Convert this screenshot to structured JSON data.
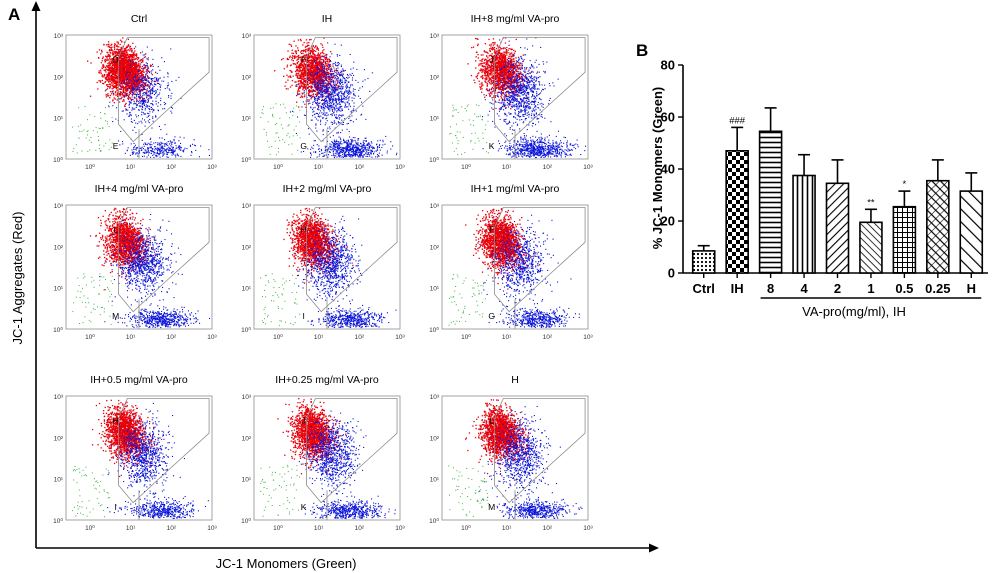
{
  "panel_labels": {
    "a": "A",
    "b": "B"
  },
  "panel_a": {
    "y_axis_label": "JC-1 Aggregates (Red)",
    "x_axis_label": "JC-1 Monomers (Green)",
    "colors": {
      "aggregates": "#e8000a",
      "monomers": "#0a14d8",
      "debris": "#3cb43c"
    },
    "tick_labels": [
      "10⁰",
      "10¹",
      "10²",
      "10³"
    ],
    "plots": [
      {
        "title": "Ctrl",
        "gate_upper": "D",
        "gate_lower": "E",
        "red_frac": 0.85
      },
      {
        "title": "IH",
        "gate_upper": "F",
        "gate_lower": "G",
        "red_frac": 0.45
      },
      {
        "title": "IH+8 mg/ml VA-pro",
        "gate_upper": "J",
        "gate_lower": "K",
        "red_frac": 0.45
      },
      {
        "title": "IH+4 mg/ml VA-pro",
        "gate_upper": "L",
        "gate_lower": "M",
        "red_frac": 0.55
      },
      {
        "title": "IH+2 mg/ml VA-pro",
        "gate_upper": "H",
        "gate_lower": "I",
        "red_frac": 0.55
      },
      {
        "title": "IH+1 mg/ml VA-pro",
        "gate_upper": "F",
        "gate_lower": "G",
        "red_frac": 0.65
      },
      {
        "title": "IH+0.5 mg/ml VA-pro",
        "gate_upper": "H",
        "gate_lower": "I",
        "red_frac": 0.6
      },
      {
        "title": "IH+0.25 mg/ml VA-pro",
        "gate_upper": "J",
        "gate_lower": "K",
        "red_frac": 0.55
      },
      {
        "title": "H",
        "gate_upper": "L",
        "gate_lower": "M",
        "red_frac": 0.6
      }
    ]
  },
  "chart_data": {
    "type": "bar",
    "title": "",
    "ylabel": "% JC-1 Monomers (Green)",
    "xlabel": "VA-pro(mg/ml), IH",
    "ylim": [
      0,
      80
    ],
    "yticks": [
      0,
      20,
      40,
      60,
      80
    ],
    "categories": [
      "Ctrl",
      "IH",
      "8",
      "4",
      "2",
      "1",
      "0.5",
      "0.25",
      "H"
    ],
    "values": [
      8.5,
      47,
      54.5,
      37.5,
      34.5,
      19.5,
      25.5,
      35.5,
      31.5
    ],
    "errors": [
      2,
      9,
      9,
      8,
      9,
      5,
      6,
      8,
      7
    ],
    "annotations": [
      "",
      "###",
      "",
      "",
      "",
      "**",
      "*",
      "",
      ""
    ],
    "patterns": [
      "dots",
      "checker",
      "hlines",
      "vlines",
      "diag-down",
      "diag-up",
      "grid",
      "crosshatch",
      "diag-down-sparse"
    ]
  }
}
